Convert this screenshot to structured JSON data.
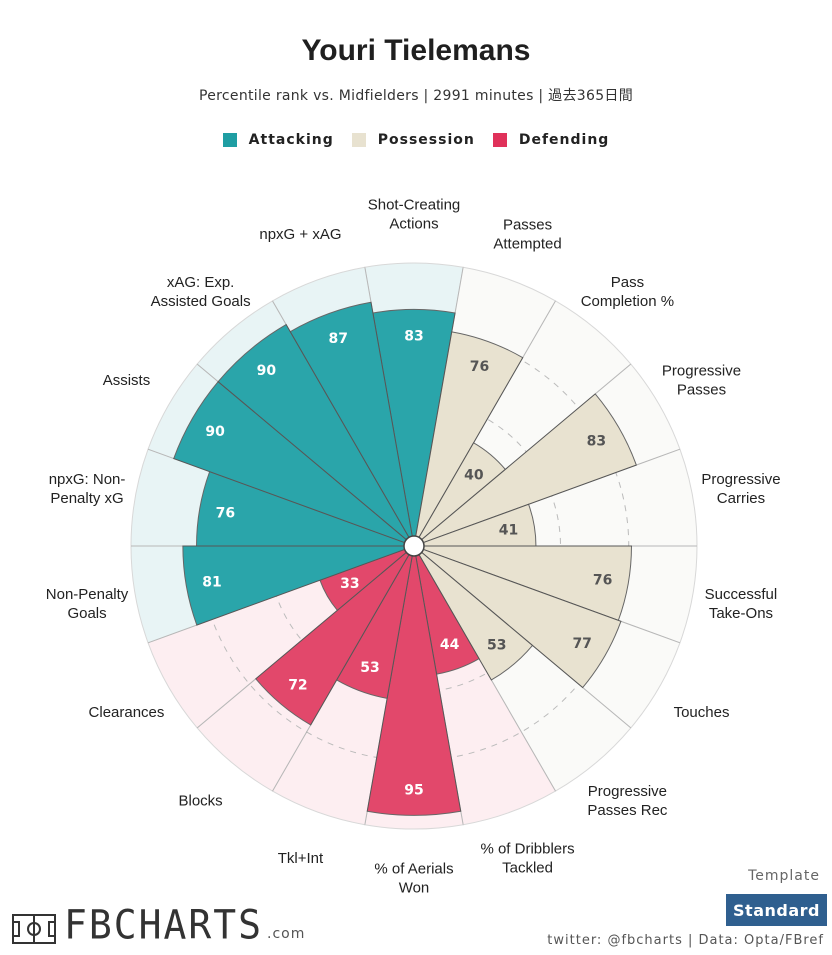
{
  "title": "Youri Tielemans",
  "subtitle": "Percentile rank vs. Midfielders | 2991 minutes | 過去365日間",
  "legend": [
    {
      "label": "Attacking",
      "color": "#1f9ea3"
    },
    {
      "label": "Possession",
      "color": "#e8e2d0"
    },
    {
      "label": "Defending",
      "color": "#e0315a"
    }
  ],
  "template": {
    "label": "Template",
    "value": "Standard"
  },
  "credits": "twitter: @fbcharts | Data: Opta/FBref",
  "logo": {
    "text": "FBCHARTS",
    "suffix": ".com"
  },
  "colors": {
    "attacking_fill": "#2aa5aa",
    "attacking_bg": "#e8f4f5",
    "possession_fill": "#e8e2d0",
    "possession_bg": "#fafaf8",
    "defending_fill": "#e2486b",
    "defending_bg": "#fdeef1"
  },
  "chart_data": {
    "type": "radial_bar",
    "max": 100,
    "start_metric_label": "Shot-Creating Actions",
    "metrics": [
      {
        "label": "Shot-Creating\nActions",
        "value": 83,
        "group": "attacking"
      },
      {
        "label": "Passes\nAttempted",
        "value": 76,
        "group": "possession"
      },
      {
        "label": "Pass\nCompletion %",
        "value": 40,
        "group": "possession"
      },
      {
        "label": "Progressive\nPasses",
        "value": 83,
        "group": "possession"
      },
      {
        "label": "Progressive\nCarries",
        "value": 41,
        "group": "possession"
      },
      {
        "label": "Successful\nTake-Ons",
        "value": 76,
        "group": "possession"
      },
      {
        "label": "Touches",
        "value": 77,
        "group": "possession"
      },
      {
        "label": "Progressive\nPasses Rec",
        "value": 53,
        "group": "possession"
      },
      {
        "label": "% of Dribblers\nTackled",
        "value": 44,
        "group": "defending"
      },
      {
        "label": "% of Aerials\nWon",
        "value": 95,
        "group": "defending"
      },
      {
        "label": "Tkl+Int",
        "value": 53,
        "group": "defending"
      },
      {
        "label": "Blocks",
        "value": 72,
        "group": "defending"
      },
      {
        "label": "Clearances",
        "value": 33,
        "group": "defending"
      },
      {
        "label": "Non-Penalty\nGoals",
        "value": 81,
        "group": "attacking"
      },
      {
        "label": "npxG: Non-\nPenalty xG",
        "value": 76,
        "group": "attacking"
      },
      {
        "label": "Assists",
        "value": 90,
        "group": "attacking"
      },
      {
        "label": "xAG: Exp.\nAssisted Goals",
        "value": 90,
        "group": "attacking"
      },
      {
        "label": "npxG + xAG",
        "value": 87,
        "group": "attacking"
      }
    ],
    "rings": [
      25,
      50,
      75
    ]
  }
}
